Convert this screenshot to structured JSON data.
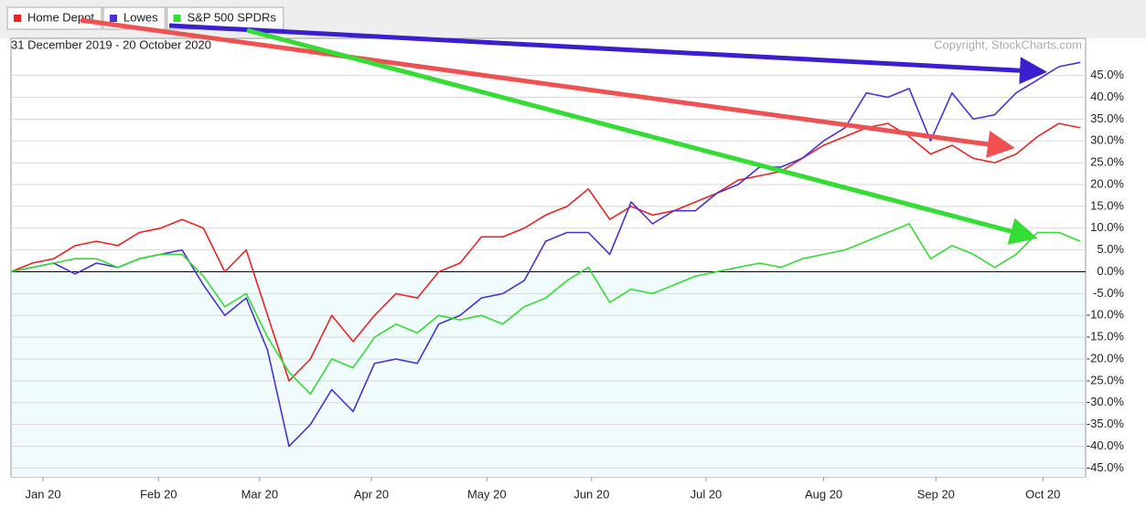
{
  "chart_data": {
    "type": "line",
    "subtitle": "31 December 2019 - 20 October 2020",
    "copyright": "Copyright, StockCharts.com",
    "legend": "top-left",
    "grid": true,
    "x": [
      0,
      4,
      8,
      12,
      16,
      20,
      24,
      28,
      32,
      36,
      40,
      44,
      48,
      52,
      56,
      60,
      64,
      68,
      72,
      76,
      80,
      84,
      88,
      92,
      96,
      100,
      104,
      108,
      112,
      116,
      120,
      124,
      128,
      132,
      136,
      140,
      144,
      148,
      152,
      156,
      160,
      164,
      168,
      172,
      176,
      180,
      184,
      188,
      192,
      196,
      200
    ],
    "xlim": [
      0,
      201
    ],
    "xticks": [
      {
        "value": 6,
        "label": "Jan 20"
      },
      {
        "value": 27.6,
        "label": "Feb 20"
      },
      {
        "value": 46.5,
        "label": "Mar 20"
      },
      {
        "value": 67.4,
        "label": "Apr 20"
      },
      {
        "value": 89,
        "label": "May 20"
      },
      {
        "value": 108.6,
        "label": "Jun 20"
      },
      {
        "value": 130,
        "label": "Jul 20"
      },
      {
        "value": 152,
        "label": "Aug 20"
      },
      {
        "value": 173,
        "label": "Sep 20"
      },
      {
        "value": 193,
        "label": "Oct 20"
      }
    ],
    "ylim": [
      -47,
      53.5
    ],
    "yticks": [
      {
        "value": 45,
        "label": "45.0%"
      },
      {
        "value": 40,
        "label": "40.0%"
      },
      {
        "value": 35,
        "label": "35.0%"
      },
      {
        "value": 30,
        "label": "30.0%"
      },
      {
        "value": 25,
        "label": "25.0%"
      },
      {
        "value": 20,
        "label": "20.0%"
      },
      {
        "value": 15,
        "label": "15.0%"
      },
      {
        "value": 10,
        "label": "10.0%"
      },
      {
        "value": 5,
        "label": "5.0%"
      },
      {
        "value": 0,
        "label": "0.0%"
      },
      {
        "value": -5,
        "label": "-5.0%"
      },
      {
        "value": -10,
        "label": "-10.0%"
      },
      {
        "value": -15,
        "label": "-15.0%"
      },
      {
        "value": -20,
        "label": "-20.0%"
      },
      {
        "value": -25,
        "label": "-25.0%"
      },
      {
        "value": -30,
        "label": "-30.0%"
      },
      {
        "value": -35,
        "label": "-35.0%"
      },
      {
        "value": -40,
        "label": "-40.0%"
      },
      {
        "value": -45,
        "label": "-45.0%"
      }
    ],
    "series": [
      {
        "name": "Home Depot",
        "color": "#ee2222",
        "values": [
          0,
          2,
          3,
          6,
          7,
          6,
          9,
          10,
          12,
          10,
          0,
          5,
          -10,
          -25,
          -20,
          -10,
          -16,
          -10,
          -5,
          -6,
          0,
          2,
          8,
          8,
          10,
          13,
          15,
          19,
          12,
          15,
          13,
          14,
          16,
          18,
          21,
          22,
          23,
          26,
          29,
          31,
          33,
          34,
          31,
          27,
          29,
          26,
          25,
          27,
          31,
          34,
          33
        ]
      },
      {
        "name": "Lowes",
        "color": "#4a30d6",
        "values": [
          0,
          1,
          2,
          -0.5,
          2,
          1,
          3,
          4,
          5,
          -3,
          -10,
          -6,
          -18,
          -40,
          -35,
          -27,
          -32,
          -21,
          -20,
          -21,
          -12,
          -10,
          -6,
          -5,
          -2,
          7,
          9,
          9,
          4,
          16,
          11,
          14,
          14,
          18,
          20,
          24,
          24,
          26,
          30,
          33,
          41,
          40,
          42,
          30,
          41,
          35,
          36,
          41,
          44,
          47,
          48
        ]
      },
      {
        "name": "S&P 500 SPDRs",
        "color": "#33dd33",
        "values": [
          0,
          1,
          2,
          3,
          3,
          1,
          3,
          4,
          4,
          -1,
          -8,
          -5,
          -15,
          -23,
          -28,
          -20,
          -22,
          -15,
          -12,
          -14,
          -10,
          -11,
          -10,
          -12,
          -8,
          -6,
          -2,
          1,
          -7,
          -4,
          -5,
          -3,
          -1,
          0,
          1,
          2,
          1,
          3,
          4,
          5,
          7,
          9,
          11,
          3,
          6,
          4,
          1,
          4,
          9,
          9,
          7
        ]
      }
    ]
  }
}
